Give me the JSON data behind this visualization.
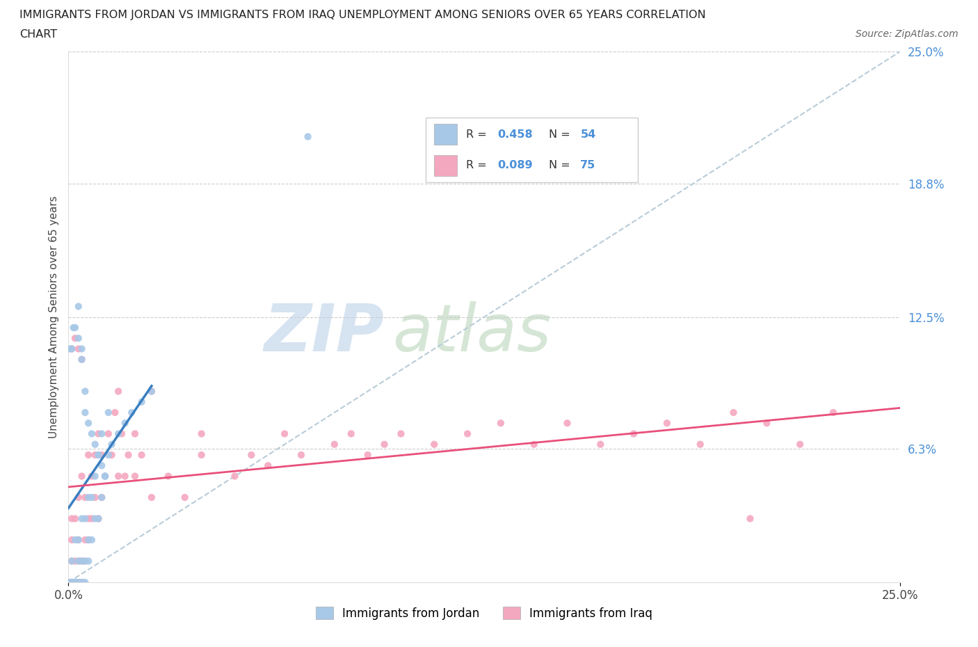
{
  "title_line1": "IMMIGRANTS FROM JORDAN VS IMMIGRANTS FROM IRAQ UNEMPLOYMENT AMONG SENIORS OVER 65 YEARS CORRELATION",
  "title_line2": "CHART",
  "source": "Source: ZipAtlas.com",
  "ylabel": "Unemployment Among Seniors over 65 years",
  "xlim": [
    0.0,
    0.25
  ],
  "ylim": [
    0.0,
    0.25
  ],
  "ytick_positions": [
    0.063,
    0.125,
    0.188,
    0.25
  ],
  "ytick_labels": [
    "6.3%",
    "12.5%",
    "18.8%",
    "25.0%"
  ],
  "jordan_R": 0.458,
  "jordan_N": 54,
  "iraq_R": 0.089,
  "iraq_N": 75,
  "jordan_color": "#a8c8e8",
  "iraq_color": "#f4a8c0",
  "jordan_line_color": "#3a7fc1",
  "iraq_line_color": "#e8507a",
  "trendline_dashed_color": "#b8ccd8",
  "background_color": "#ffffff",
  "watermark_zip": "ZIP",
  "watermark_atlas": "atlas",
  "watermark_color_zip": "#c8d8e8",
  "watermark_color_atlas": "#c8d8c8",
  "legend_label_jordan": "Immigrants from Jordan",
  "legend_label_iraq": "Immigrants from Iraq",
  "jordan_x": [
    0.0005,
    0.001,
    0.001,
    0.001,
    0.0015,
    0.002,
    0.002,
    0.002,
    0.003,
    0.003,
    0.003,
    0.004,
    0.004,
    0.004,
    0.005,
    0.005,
    0.005,
    0.006,
    0.006,
    0.006,
    0.007,
    0.007,
    0.008,
    0.008,
    0.009,
    0.009,
    0.01,
    0.01,
    0.011,
    0.012,
    0.0005,
    0.001,
    0.0015,
    0.002,
    0.003,
    0.003,
    0.004,
    0.004,
    0.005,
    0.005,
    0.006,
    0.007,
    0.008,
    0.009,
    0.01,
    0.011,
    0.012,
    0.013,
    0.015,
    0.017,
    0.019,
    0.022,
    0.025,
    0.072
  ],
  "jordan_y": [
    0.0,
    0.0,
    0.0,
    0.01,
    0.0,
    0.0,
    0.0,
    0.02,
    0.0,
    0.01,
    0.02,
    0.0,
    0.01,
    0.03,
    0.0,
    0.01,
    0.03,
    0.01,
    0.02,
    0.04,
    0.02,
    0.04,
    0.03,
    0.05,
    0.03,
    0.06,
    0.04,
    0.07,
    0.05,
    0.08,
    0.11,
    0.11,
    0.12,
    0.12,
    0.13,
    0.115,
    0.11,
    0.105,
    0.09,
    0.08,
    0.075,
    0.07,
    0.065,
    0.06,
    0.055,
    0.05,
    0.06,
    0.065,
    0.07,
    0.075,
    0.08,
    0.085,
    0.09,
    0.21
  ],
  "iraq_x": [
    0.0005,
    0.001,
    0.001,
    0.001,
    0.001,
    0.002,
    0.002,
    0.002,
    0.003,
    0.003,
    0.003,
    0.003,
    0.004,
    0.004,
    0.004,
    0.005,
    0.005,
    0.005,
    0.006,
    0.006,
    0.006,
    0.007,
    0.007,
    0.008,
    0.008,
    0.009,
    0.009,
    0.01,
    0.01,
    0.011,
    0.012,
    0.013,
    0.014,
    0.015,
    0.015,
    0.016,
    0.017,
    0.018,
    0.02,
    0.02,
    0.022,
    0.025,
    0.025,
    0.03,
    0.035,
    0.04,
    0.04,
    0.05,
    0.055,
    0.06,
    0.065,
    0.07,
    0.08,
    0.085,
    0.09,
    0.095,
    0.1,
    0.11,
    0.12,
    0.13,
    0.14,
    0.15,
    0.16,
    0.17,
    0.18,
    0.19,
    0.2,
    0.21,
    0.22,
    0.23,
    0.001,
    0.002,
    0.003,
    0.004,
    0.205
  ],
  "iraq_y": [
    0.0,
    0.0,
    0.01,
    0.02,
    0.03,
    0.0,
    0.01,
    0.03,
    0.0,
    0.01,
    0.02,
    0.04,
    0.0,
    0.01,
    0.05,
    0.01,
    0.02,
    0.04,
    0.02,
    0.03,
    0.06,
    0.03,
    0.05,
    0.04,
    0.06,
    0.03,
    0.07,
    0.04,
    0.06,
    0.05,
    0.07,
    0.06,
    0.08,
    0.05,
    0.09,
    0.07,
    0.05,
    0.06,
    0.05,
    0.07,
    0.06,
    0.04,
    0.09,
    0.05,
    0.04,
    0.06,
    0.07,
    0.05,
    0.06,
    0.055,
    0.07,
    0.06,
    0.065,
    0.07,
    0.06,
    0.065,
    0.07,
    0.065,
    0.07,
    0.075,
    0.065,
    0.075,
    0.065,
    0.07,
    0.075,
    0.065,
    0.08,
    0.075,
    0.065,
    0.08,
    0.11,
    0.115,
    0.11,
    0.105,
    0.03
  ]
}
